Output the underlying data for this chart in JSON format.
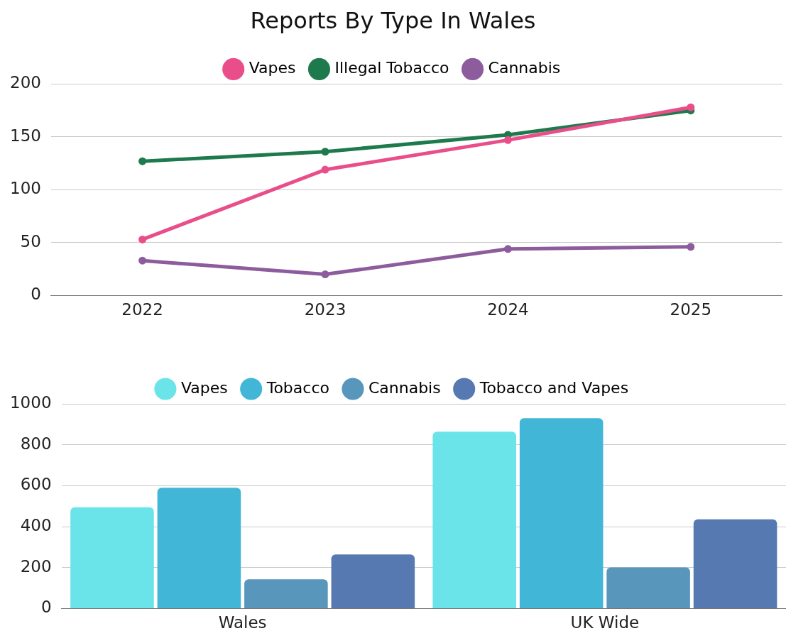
{
  "chart_data": [
    {
      "type": "line",
      "title": "Reports By Type In Wales",
      "categories": [
        "2022",
        "2023",
        "2024",
        "2025"
      ],
      "series": [
        {
          "name": "Vapes",
          "color": "#e94e8a",
          "values": [
            53,
            119,
            147,
            178
          ]
        },
        {
          "name": "Illegal Tobacco",
          "color": "#1e7a4c",
          "values": [
            127,
            136,
            152,
            175
          ]
        },
        {
          "name": "Cannabis",
          "color": "#8c5c9c",
          "values": [
            33,
            20,
            44,
            46
          ]
        }
      ],
      "ylim": [
        0,
        200
      ],
      "yticks": [
        0,
        50,
        100,
        150,
        200
      ],
      "grid": "y",
      "legend": "top",
      "marker": "circle",
      "line_style": "solid"
    },
    {
      "type": "bar",
      "categories": [
        "Wales",
        "UK Wide"
      ],
      "series": [
        {
          "name": "Vapes",
          "color": "#6ae4e8",
          "values": [
            495,
            864
          ]
        },
        {
          "name": "Tobacco",
          "color": "#42b6d6",
          "values": [
            590,
            930
          ]
        },
        {
          "name": "Cannabis",
          "color": "#5896bc",
          "values": [
            143,
            201
          ]
        },
        {
          "name": "Tobacco and Vapes",
          "color": "#5579b0",
          "values": [
            264,
            436
          ]
        }
      ],
      "ylim": [
        0,
        1000
      ],
      "yticks": [
        0,
        200,
        400,
        600,
        800,
        1000
      ],
      "grid": "y",
      "legend": "top"
    }
  ]
}
